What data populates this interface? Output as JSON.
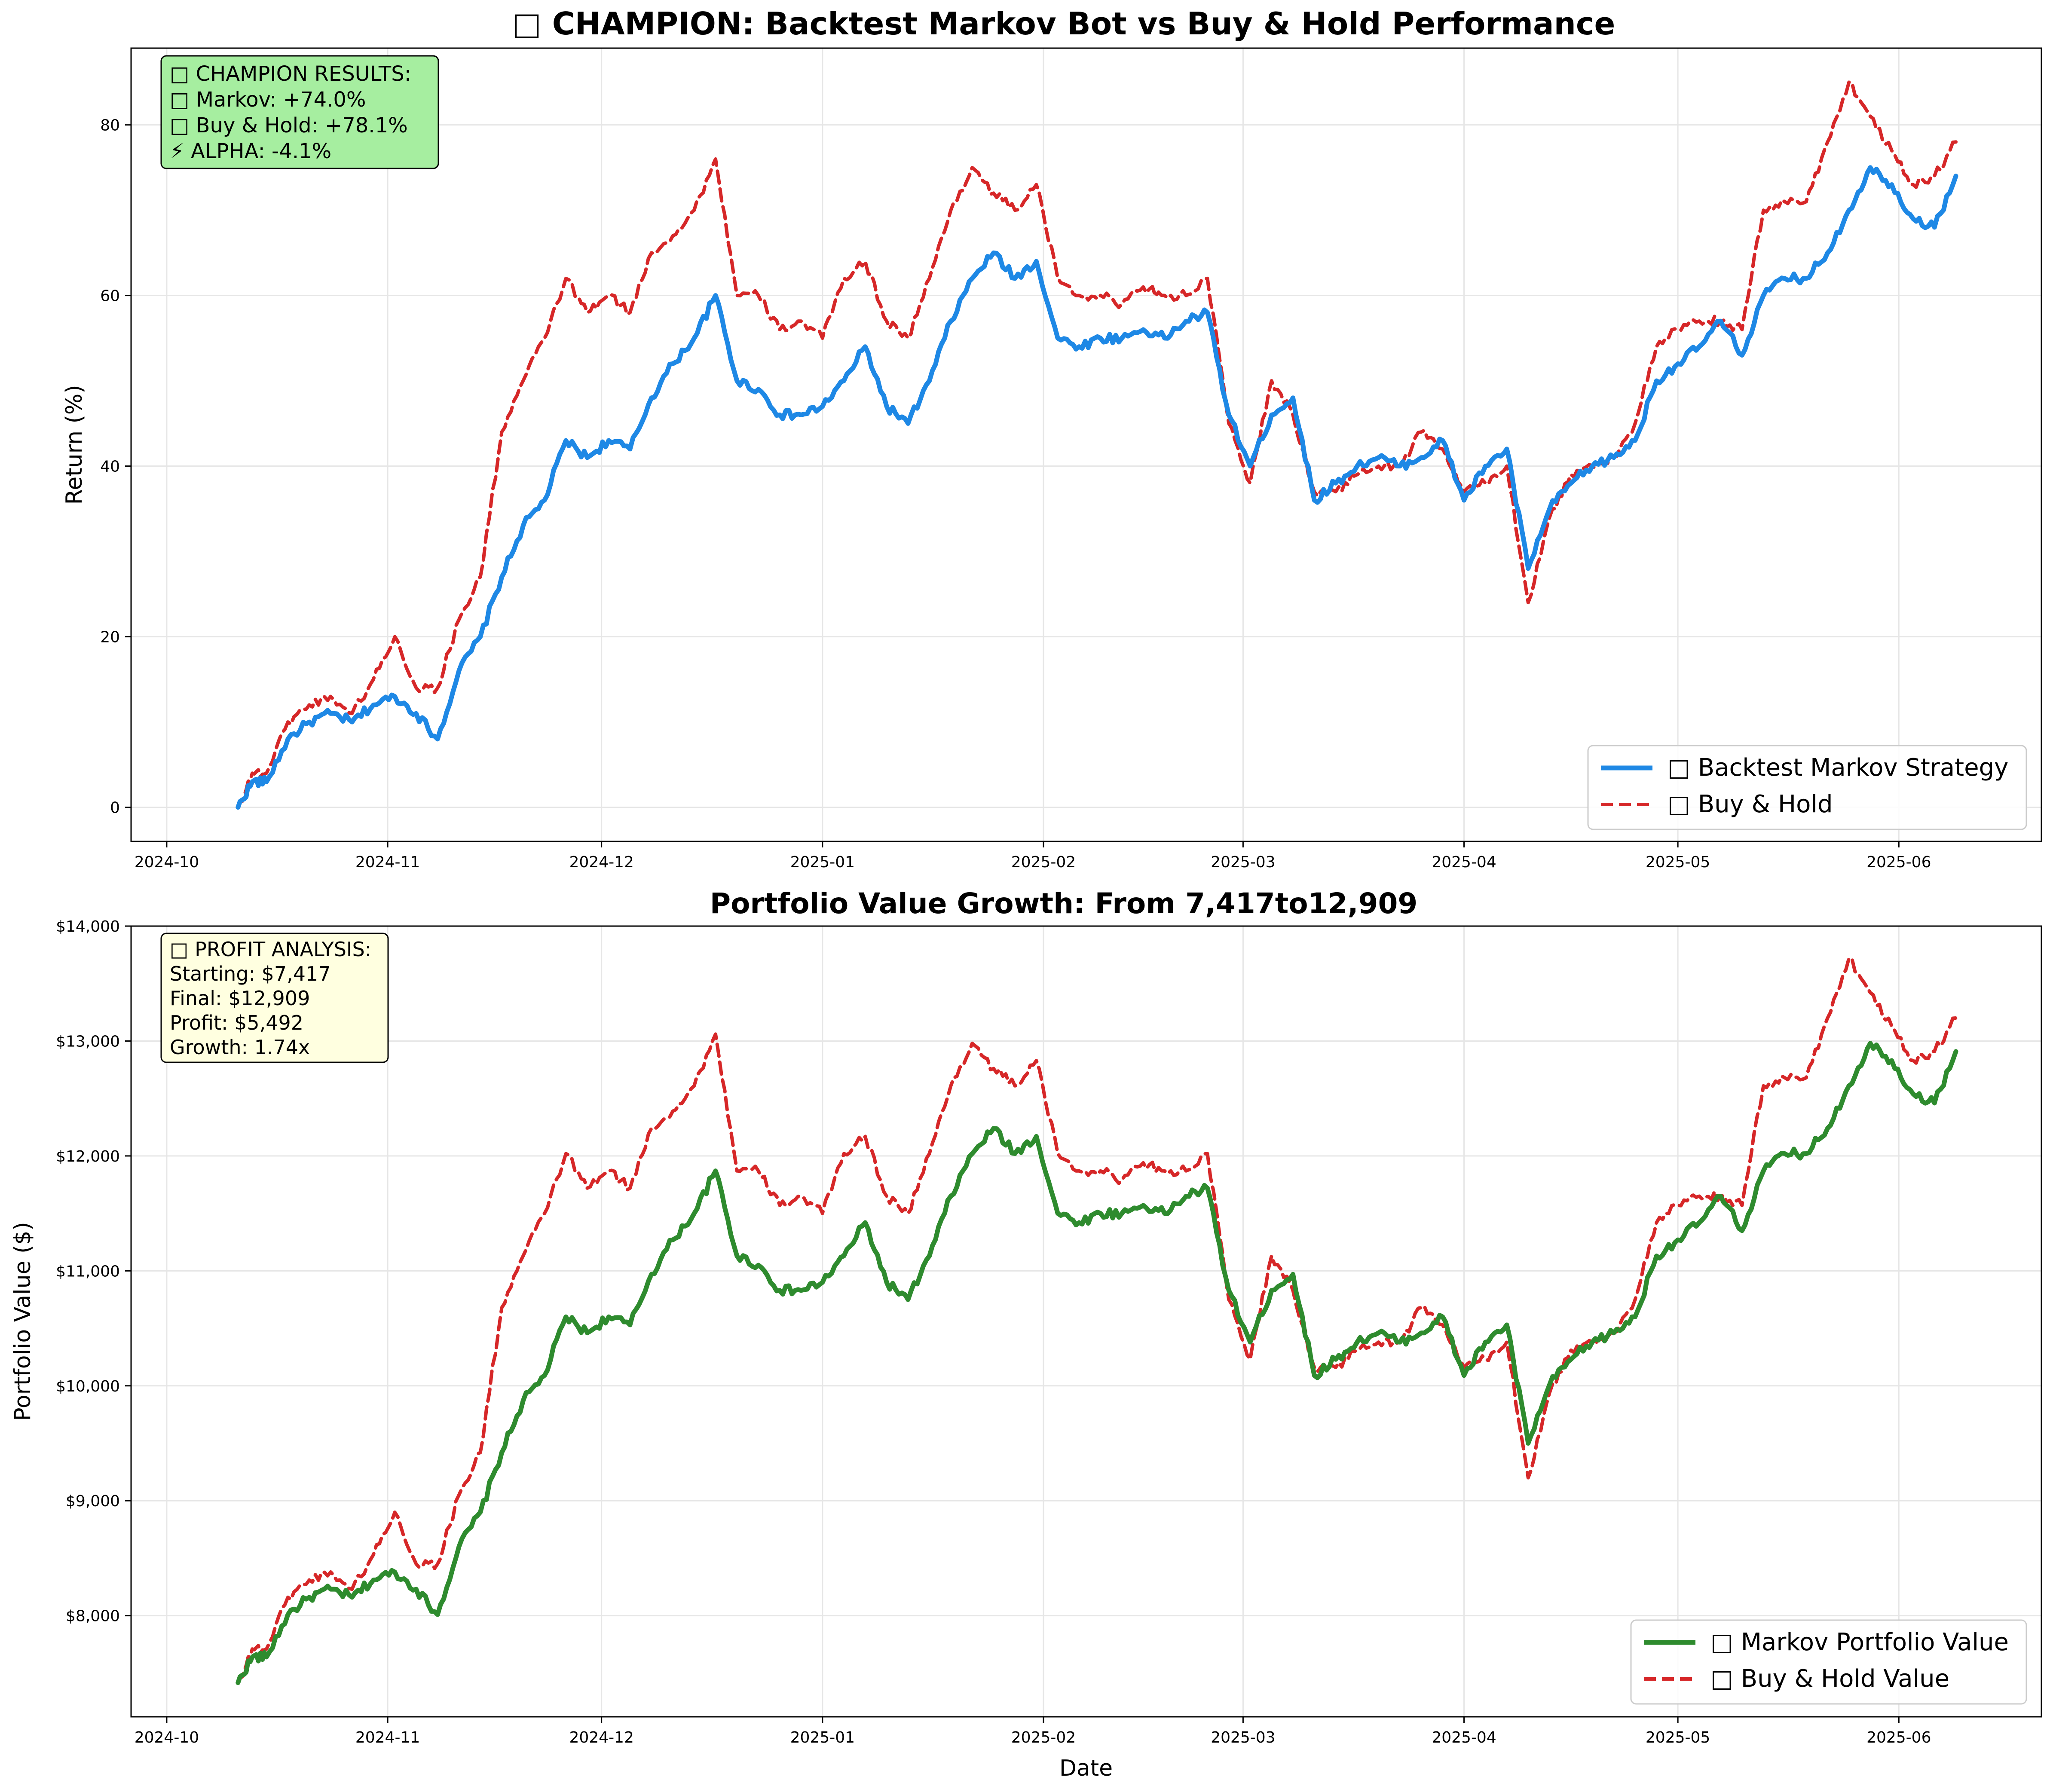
{
  "chart_data": [
    {
      "type": "line",
      "title": "□ CHAMPION: Backtest Markov Bot vs Buy & Hold Performance",
      "xlabel": "",
      "ylabel": "Return (%)",
      "x_ticks": [
        "2024-10",
        "2024-11",
        "2024-12",
        "2025-01",
        "2025-02",
        "2025-03",
        "2025-04",
        "2025-05",
        "2025-06"
      ],
      "y_ticks": [
        "0",
        "20",
        "40",
        "60",
        "80"
      ],
      "xlim": [
        "2024-09-26",
        "2025-06-21"
      ],
      "ylim": [
        -4,
        89
      ],
      "grid": true,
      "legend_position": "lower-right",
      "annotation": {
        "lines": [
          "□ CHAMPION RESULTS:",
          "□ Markov: +74.0%",
          "□ Buy & Hold: +78.1%",
          "⚡ ALPHA: -4.1%"
        ],
        "background": "#a6eea0"
      },
      "series": [
        {
          "name": "□ Backtest Markov Strategy",
          "color": "#1e88e5",
          "style": "solid",
          "x": [
            "2024-10-11",
            "2024-10-13",
            "2024-10-15",
            "2024-10-18",
            "2024-10-21",
            "2024-10-24",
            "2024-10-27",
            "2024-10-30",
            "2024-11-02",
            "2024-11-05",
            "2024-11-08",
            "2024-11-11",
            "2024-11-14",
            "2024-11-17",
            "2024-11-20",
            "2024-11-23",
            "2024-11-26",
            "2024-11-29",
            "2024-12-02",
            "2024-12-05",
            "2024-12-08",
            "2024-12-11",
            "2024-12-14",
            "2024-12-17",
            "2024-12-20",
            "2024-12-23",
            "2024-12-26",
            "2024-12-29",
            "2025-01-01",
            "2025-01-04",
            "2025-01-07",
            "2025-01-10",
            "2025-01-13",
            "2025-01-16",
            "2025-01-19",
            "2025-01-22",
            "2025-01-25",
            "2025-01-28",
            "2025-01-31",
            "2025-02-03",
            "2025-02-06",
            "2025-02-09",
            "2025-02-12",
            "2025-02-15",
            "2025-02-18",
            "2025-02-21",
            "2025-02-24",
            "2025-02-27",
            "2025-03-02",
            "2025-03-05",
            "2025-03-08",
            "2025-03-11",
            "2025-03-14",
            "2025-03-17",
            "2025-03-20",
            "2025-03-23",
            "2025-03-26",
            "2025-03-29",
            "2025-04-01",
            "2025-04-04",
            "2025-04-07",
            "2025-04-10",
            "2025-04-13",
            "2025-04-16",
            "2025-04-19",
            "2025-04-22",
            "2025-04-25",
            "2025-04-28",
            "2025-05-01",
            "2025-05-04",
            "2025-05-07",
            "2025-05-10",
            "2025-05-13",
            "2025-05-16",
            "2025-05-19",
            "2025-05-22",
            "2025-05-25",
            "2025-05-28",
            "2025-05-31",
            "2025-06-03",
            "2025-06-06",
            "2025-06-09"
          ],
          "y": [
            0,
            3,
            3,
            8,
            10,
            11,
            10,
            12,
            13,
            11,
            8,
            16,
            20,
            27,
            33,
            36,
            43,
            41,
            43,
            42,
            48,
            52,
            55,
            60,
            50,
            49,
            46,
            46,
            47,
            50,
            54,
            47,
            45,
            50,
            57,
            62,
            65,
            62,
            64,
            55,
            54,
            55,
            55,
            56,
            55,
            57,
            58,
            46,
            40,
            46,
            48,
            36,
            38,
            40,
            41,
            40,
            41,
            43,
            36,
            40,
            42,
            28,
            35,
            38,
            40,
            41,
            43,
            50,
            52,
            54,
            57,
            53,
            60,
            62,
            62,
            65,
            70,
            75,
            73,
            69,
            68,
            74
          ],
          "_note": "values read approximately from gridlines"
        },
        {
          "name": "□ Buy & Hold",
          "color": "#d62728",
          "style": "dashed",
          "x": [
            "2024-10-11",
            "2024-10-13",
            "2024-10-15",
            "2024-10-18",
            "2024-10-21",
            "2024-10-24",
            "2024-10-27",
            "2024-10-30",
            "2024-11-02",
            "2024-11-05",
            "2024-11-08",
            "2024-11-11",
            "2024-11-14",
            "2024-11-17",
            "2024-11-20",
            "2024-11-23",
            "2024-11-26",
            "2024-11-29",
            "2024-12-02",
            "2024-12-05",
            "2024-12-08",
            "2024-12-11",
            "2024-12-14",
            "2024-12-17",
            "2024-12-20",
            "2024-12-23",
            "2024-12-26",
            "2024-12-29",
            "2025-01-01",
            "2025-01-04",
            "2025-01-07",
            "2025-01-10",
            "2025-01-13",
            "2025-01-16",
            "2025-01-19",
            "2025-01-22",
            "2025-01-25",
            "2025-01-28",
            "2025-01-31",
            "2025-02-03",
            "2025-02-06",
            "2025-02-09",
            "2025-02-12",
            "2025-02-15",
            "2025-02-18",
            "2025-02-21",
            "2025-02-24",
            "2025-02-27",
            "2025-03-02",
            "2025-03-05",
            "2025-03-08",
            "2025-03-11",
            "2025-03-14",
            "2025-03-17",
            "2025-03-20",
            "2025-03-23",
            "2025-03-26",
            "2025-03-29",
            "2025-04-01",
            "2025-04-04",
            "2025-04-07",
            "2025-04-10",
            "2025-04-13",
            "2025-04-16",
            "2025-04-19",
            "2025-04-22",
            "2025-04-25",
            "2025-04-28",
            "2025-05-01",
            "2025-05-04",
            "2025-05-07",
            "2025-05-10",
            "2025-05-13",
            "2025-05-16",
            "2025-05-19",
            "2025-05-22",
            "2025-05-25",
            "2025-05-28",
            "2025-05-31",
            "2025-06-03",
            "2025-06-06",
            "2025-06-09"
          ],
          "y": [
            0,
            4,
            4,
            10,
            12,
            13,
            11,
            15,
            20,
            14,
            14,
            22,
            27,
            44,
            50,
            55,
            62,
            58,
            60,
            58,
            65,
            67,
            70,
            76,
            60,
            60,
            56,
            57,
            55,
            62,
            64,
            57,
            55,
            62,
            70,
            75,
            72,
            70,
            73,
            62,
            60,
            60,
            59,
            61,
            60,
            60,
            62,
            45,
            38,
            50,
            46,
            37,
            37,
            39,
            40,
            40,
            44,
            42,
            37,
            38,
            40,
            24,
            34,
            39,
            40,
            41,
            45,
            54,
            56,
            57,
            57,
            56,
            70,
            71,
            71,
            78,
            85,
            81,
            77,
            73,
            74,
            78
          ],
          "_note": "values read approximately from gridlines"
        }
      ]
    },
    {
      "type": "line",
      "title": "Portfolio Value Growth: From 7,417to12,909",
      "xlabel": "Date",
      "ylabel": "Portfolio Value ($)",
      "x_ticks": [
        "2024-10",
        "2024-11",
        "2024-12",
        "2025-01",
        "2025-02",
        "2025-03",
        "2025-04",
        "2025-05",
        "2025-06"
      ],
      "y_ticks": [
        "$8,000",
        "$9,000",
        "$10,000",
        "$11,000",
        "$12,000",
        "$13,000",
        "$14,000"
      ],
      "y_tick_values": [
        8000,
        9000,
        10000,
        11000,
        12000,
        13000,
        14000
      ],
      "xlim": [
        "2024-09-26",
        "2025-06-21"
      ],
      "ylim": [
        7120,
        14000
      ],
      "grid": true,
      "legend_position": "lower-right",
      "annotation": {
        "lines": [
          "□ PROFIT ANALYSIS:",
          "Starting: $7,417",
          "Final: $12,909",
          "Profit: $5,492",
          "Growth: 1.74x"
        ],
        "background": "#ffffe0"
      },
      "series": [
        {
          "name": "□ Markov Portfolio Value",
          "color": "#2e8b2e",
          "style": "solid",
          "x": [
            "2024-10-11",
            "2024-10-13",
            "2024-10-15",
            "2024-10-18",
            "2024-10-21",
            "2024-10-24",
            "2024-10-27",
            "2024-10-30",
            "2024-11-02",
            "2024-11-05",
            "2024-11-08",
            "2024-11-11",
            "2024-11-14",
            "2024-11-17",
            "2024-11-20",
            "2024-11-23",
            "2024-11-26",
            "2024-11-29",
            "2024-12-02",
            "2024-12-05",
            "2024-12-08",
            "2024-12-11",
            "2024-12-14",
            "2024-12-17",
            "2024-12-20",
            "2024-12-23",
            "2024-12-26",
            "2024-12-29",
            "2025-01-01",
            "2025-01-04",
            "2025-01-07",
            "2025-01-10",
            "2025-01-13",
            "2025-01-16",
            "2025-01-19",
            "2025-01-22",
            "2025-01-25",
            "2025-01-28",
            "2025-01-31",
            "2025-02-03",
            "2025-02-06",
            "2025-02-09",
            "2025-02-12",
            "2025-02-15",
            "2025-02-18",
            "2025-02-21",
            "2025-02-24",
            "2025-02-27",
            "2025-03-02",
            "2025-03-05",
            "2025-03-08",
            "2025-03-11",
            "2025-03-14",
            "2025-03-17",
            "2025-03-20",
            "2025-03-23",
            "2025-03-26",
            "2025-03-29",
            "2025-04-01",
            "2025-04-04",
            "2025-04-07",
            "2025-04-10",
            "2025-04-13",
            "2025-04-16",
            "2025-04-19",
            "2025-04-22",
            "2025-04-25",
            "2025-04-28",
            "2025-05-01",
            "2025-05-04",
            "2025-05-07",
            "2025-05-10",
            "2025-05-13",
            "2025-05-16",
            "2025-05-19",
            "2025-05-22",
            "2025-05-25",
            "2025-05-28",
            "2025-05-31",
            "2025-06-03",
            "2025-06-06",
            "2025-06-09"
          ],
          "y": [
            7417,
            7640,
            7640,
            8010,
            8160,
            8230,
            8160,
            8310,
            8380,
            8230,
            8010,
            8600,
            8900,
            9420,
            9870,
            10090,
            10600,
            10460,
            10600,
            10530,
            10970,
            11270,
            11500,
            11870,
            11130,
            11050,
            10830,
            10830,
            10900,
            11130,
            11420,
            10900,
            10750,
            11130,
            11650,
            12020,
            12240,
            12020,
            12170,
            11500,
            11420,
            11500,
            11500,
            11570,
            11500,
            11650,
            11720,
            10830,
            10380,
            10830,
            10970,
            10090,
            10230,
            10380,
            10460,
            10380,
            10460,
            10600,
            10090,
            10380,
            10530,
            9500,
            10010,
            10230,
            10380,
            10460,
            10600,
            11130,
            11270,
            11420,
            11650,
            11350,
            11870,
            12020,
            12020,
            12240,
            12610,
            12980,
            12830,
            12540,
            12460,
            12909
          ],
          "_note": "values read approximately from gridlines"
        },
        {
          "name": "□ Buy & Hold Value",
          "color": "#d62728",
          "style": "dashed",
          "x": [
            "2024-10-11",
            "2024-10-13",
            "2024-10-15",
            "2024-10-18",
            "2024-10-21",
            "2024-10-24",
            "2024-10-27",
            "2024-10-30",
            "2024-11-02",
            "2024-11-05",
            "2024-11-08",
            "2024-11-11",
            "2024-11-14",
            "2024-11-17",
            "2024-11-20",
            "2024-11-23",
            "2024-11-26",
            "2024-11-29",
            "2024-12-02",
            "2024-12-05",
            "2024-12-08",
            "2024-12-11",
            "2024-12-14",
            "2024-12-17",
            "2024-12-20",
            "2024-12-23",
            "2024-12-26",
            "2024-12-29",
            "2025-01-01",
            "2025-01-04",
            "2025-01-07",
            "2025-01-10",
            "2025-01-13",
            "2025-01-16",
            "2025-01-19",
            "2025-01-22",
            "2025-01-25",
            "2025-01-28",
            "2025-01-31",
            "2025-02-03",
            "2025-02-06",
            "2025-02-09",
            "2025-02-12",
            "2025-02-15",
            "2025-02-18",
            "2025-02-21",
            "2025-02-24",
            "2025-02-27",
            "2025-03-02",
            "2025-03-05",
            "2025-03-08",
            "2025-03-11",
            "2025-03-14",
            "2025-03-17",
            "2025-03-20",
            "2025-03-23",
            "2025-03-26",
            "2025-03-29",
            "2025-04-01",
            "2025-04-04",
            "2025-04-07",
            "2025-04-10",
            "2025-04-13",
            "2025-04-16",
            "2025-04-19",
            "2025-04-22",
            "2025-04-25",
            "2025-04-28",
            "2025-05-01",
            "2025-05-04",
            "2025-05-07",
            "2025-05-10",
            "2025-05-13",
            "2025-05-16",
            "2025-05-19",
            "2025-05-22",
            "2025-05-25",
            "2025-05-28",
            "2025-05-31",
            "2025-06-03",
            "2025-06-06",
            "2025-06-09"
          ],
          "y": [
            7417,
            7710,
            7710,
            8160,
            8310,
            8380,
            8230,
            8530,
            8900,
            8450,
            8450,
            9050,
            9420,
            10680,
            11130,
            11500,
            12020,
            11720,
            11870,
            11720,
            12240,
            12390,
            12610,
            13060,
            11870,
            11870,
            11570,
            11650,
            11500,
            12020,
            12170,
            11650,
            11500,
            12020,
            12610,
            12980,
            12760,
            12610,
            12830,
            12020,
            11870,
            11870,
            11790,
            11940,
            11870,
            11870,
            12020,
            10750,
            10230,
            11130,
            10830,
            10160,
            10160,
            10310,
            10380,
            10380,
            10680,
            10530,
            10160,
            10230,
            10380,
            9200,
            9940,
            10310,
            10380,
            10460,
            10750,
            11420,
            11570,
            11650,
            11650,
            11570,
            12610,
            12680,
            12680,
            13200,
            13720,
            13420,
            13130,
            12830,
            12910,
            13200
          ],
          "_note": "values read approximately from gridlines"
        }
      ]
    }
  ]
}
